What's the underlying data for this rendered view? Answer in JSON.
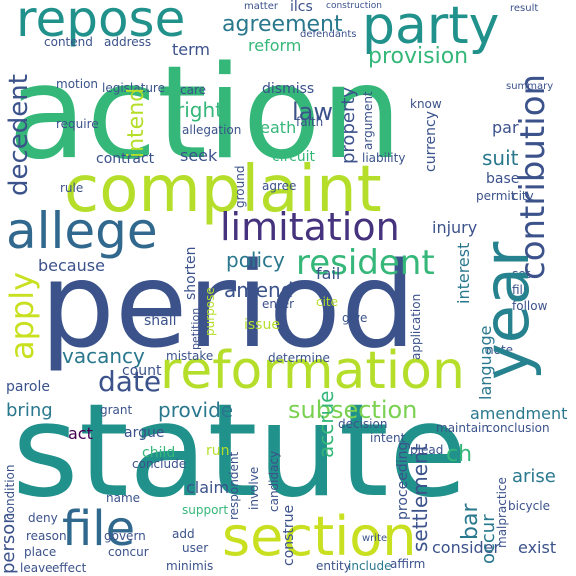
{
  "palette": {
    "navy": "#3b528b",
    "indigo": "#46337e",
    "teal": "#21918c",
    "blue": "#31688e",
    "green": "#35b779",
    "lime": "#b5de2b",
    "yellow": "#e0e619",
    "light": "#7ad151",
    "dark": "#440154"
  },
  "words": [
    {
      "text": "action",
      "color": "#35b779"
    },
    {
      "text": "statute",
      "color": "#21918c"
    },
    {
      "text": "period",
      "color": "#3b528b"
    },
    {
      "text": "complaint",
      "color": "#b5de2b"
    },
    {
      "text": "reformation",
      "color": "#b5de2b"
    },
    {
      "text": "section",
      "color": "#c8e020"
    },
    {
      "text": "repose",
      "color": "#21918c"
    },
    {
      "text": "party",
      "color": "#21918c"
    },
    {
      "text": "allege",
      "color": "#31688e"
    },
    {
      "text": "limitation",
      "color": "#46337e"
    },
    {
      "text": "year",
      "color": "#26828e"
    },
    {
      "text": "file",
      "color": "#31688e"
    },
    {
      "text": "apply",
      "color": "#c8e020"
    },
    {
      "text": "resident",
      "color": "#35b779"
    },
    {
      "text": "contribution",
      "color": "#3b528b"
    },
    {
      "text": "decedent",
      "color": "#3b528b"
    },
    {
      "text": "agreement",
      "color": "#2a788e"
    },
    {
      "text": "provision",
      "color": "#35b779"
    },
    {
      "text": "date",
      "color": "#3b528b"
    },
    {
      "text": "subsection",
      "color": "#7ad151"
    },
    {
      "text": "policy",
      "color": "#2a788e"
    },
    {
      "text": "amend",
      "color": "#3b528b"
    },
    {
      "text": "vacancy",
      "color": "#2a788e"
    },
    {
      "text": "provide",
      "color": "#2a788e"
    },
    {
      "text": "law",
      "color": "#3b528b"
    },
    {
      "text": "right",
      "color": "#35b779"
    },
    {
      "text": "death",
      "color": "#35b779"
    },
    {
      "text": "reform",
      "color": "#35b779"
    },
    {
      "text": "term",
      "color": "#3b528b"
    },
    {
      "text": "intend",
      "color": "#b5de2b"
    },
    {
      "text": "property",
      "color": "#3b528b"
    },
    {
      "text": "suit",
      "color": "#2a788e"
    },
    {
      "text": "accrue",
      "color": "#35b779"
    },
    {
      "text": "injury",
      "color": "#3b528b"
    },
    {
      "text": "amendment",
      "color": "#2a788e"
    },
    {
      "text": "settlement",
      "color": "#3b528b"
    },
    {
      "text": "claim",
      "color": "#3b528b"
    },
    {
      "text": "bring",
      "color": "#2a788e"
    },
    {
      "text": "act",
      "color": "#440154"
    },
    {
      "text": "argue",
      "color": "#3b528b"
    },
    {
      "text": "contract",
      "color": "#3b528b"
    },
    {
      "text": "seek",
      "color": "#3b528b"
    },
    {
      "text": "circuit",
      "color": "#35b779"
    },
    {
      "text": "because",
      "color": "#3b528b"
    },
    {
      "text": "shall",
      "color": "#3b528b"
    },
    {
      "text": "issue",
      "color": "#b5de2b"
    },
    {
      "text": "count",
      "color": "#3b528b"
    },
    {
      "text": "parole",
      "color": "#3b528b"
    },
    {
      "text": "interest",
      "color": "#2a788e"
    },
    {
      "text": "language",
      "color": "#2a788e"
    },
    {
      "text": "arise",
      "color": "#2a788e"
    },
    {
      "text": "bar",
      "color": "#2a788e"
    },
    {
      "text": "occur",
      "color": "#2a788e"
    },
    {
      "text": "person",
      "color": "#3b528b"
    },
    {
      "text": "ch",
      "color": "#35b779"
    },
    {
      "text": "exist",
      "color": "#3b528b"
    },
    {
      "text": "consider",
      "color": "#3b528b"
    },
    {
      "text": "entity",
      "color": "#3b528b"
    },
    {
      "text": "include",
      "color": "#2a788e"
    },
    {
      "text": "construe",
      "color": "#3b528b"
    },
    {
      "text": "support",
      "color": "#35b779"
    },
    {
      "text": "fail",
      "color": "#3b528b"
    },
    {
      "text": "enter",
      "color": "#3b528b"
    },
    {
      "text": "cite",
      "color": "#b5de2b"
    },
    {
      "text": "give",
      "color": "#3b528b"
    },
    {
      "text": "base",
      "color": "#3b528b"
    },
    {
      "text": "par",
      "color": "#3b528b"
    },
    {
      "text": "note",
      "color": "#3b528b"
    },
    {
      "text": "dismiss",
      "color": "#3b528b"
    },
    {
      "text": "faith",
      "color": "#3b528b"
    },
    {
      "text": "liability",
      "color": "#3b528b"
    },
    {
      "text": "motion",
      "color": "#3b528b"
    },
    {
      "text": "legislature",
      "color": "#3b528b"
    },
    {
      "text": "contend",
      "color": "#3b528b"
    },
    {
      "text": "address",
      "color": "#3b528b"
    },
    {
      "text": "allegation",
      "color": "#3b528b"
    },
    {
      "text": "file2",
      "color": "#3b528b"
    },
    {
      "text": "currency",
      "color": "#3b528b"
    },
    {
      "text": "know",
      "color": "#3b528b"
    },
    {
      "text": "argument",
      "color": "#3b528b"
    },
    {
      "text": "application",
      "color": "#3b528b"
    },
    {
      "text": "proceeding",
      "color": "#3b528b"
    },
    {
      "text": "determine",
      "color": "#3b528b"
    },
    {
      "text": "mistake",
      "color": "#3b528b"
    },
    {
      "text": "grant",
      "color": "#3b528b"
    },
    {
      "text": "child",
      "color": "#35b779"
    },
    {
      "text": "decision",
      "color": "#3b528b"
    },
    {
      "text": "intent",
      "color": "#3b528b"
    },
    {
      "text": "deny",
      "color": "#3b528b"
    },
    {
      "text": "name",
      "color": "#3b528b"
    },
    {
      "text": "concur",
      "color": "#3b528b"
    },
    {
      "text": "effect",
      "color": "#3b528b"
    },
    {
      "text": "leave",
      "color": "#3b528b"
    },
    {
      "text": "place",
      "color": "#3b528b"
    },
    {
      "text": "reason",
      "color": "#3b528b"
    },
    {
      "text": "condition",
      "color": "#3b528b"
    },
    {
      "text": "respondent",
      "color": "#3b528b"
    },
    {
      "text": "involve",
      "color": "#3b528b"
    },
    {
      "text": "candidacy",
      "color": "#3b528b"
    },
    {
      "text": "malpractice",
      "color": "#3b528b"
    },
    {
      "text": "bicycle",
      "color": "#3b528b"
    },
    {
      "text": "affirm",
      "color": "#3b528b"
    },
    {
      "text": "set",
      "color": "#3b528b"
    },
    {
      "text": "fill",
      "color": "#3b528b"
    },
    {
      "text": "follow",
      "color": "#3b528b"
    },
    {
      "text": "permit",
      "color": "#3b528b"
    },
    {
      "text": "city",
      "color": "#3b528b"
    },
    {
      "text": "result",
      "color": "#3b528b"
    },
    {
      "text": "summary",
      "color": "#3b528b"
    },
    {
      "text": "matter",
      "color": "#3b528b"
    },
    {
      "text": "ilcs",
      "color": "#3b528b"
    },
    {
      "text": "construction",
      "color": "#3b528b"
    },
    {
      "text": "defendants",
      "color": "#3b528b"
    },
    {
      "text": "care",
      "color": "#3b528b"
    },
    {
      "text": "rule",
      "color": "#3b528b"
    },
    {
      "text": "require",
      "color": "#3b528b"
    },
    {
      "text": "shorten",
      "color": "#3b528b"
    },
    {
      "text": "purpose",
      "color": "#b5de2b"
    },
    {
      "text": "agree",
      "color": "#3b528b"
    },
    {
      "text": "ground",
      "color": "#3b528b"
    },
    {
      "text": "conclude",
      "color": "#3b528b"
    },
    {
      "text": "petition",
      "color": "#3b528b"
    },
    {
      "text": "run",
      "color": "#b5de2b"
    },
    {
      "text": "add",
      "color": "#3b528b"
    },
    {
      "text": "user",
      "color": "#3b528b"
    },
    {
      "text": "govern",
      "color": "#3b528b"
    },
    {
      "text": "plead",
      "color": "#3b528b"
    },
    {
      "text": "write",
      "color": "#3b528b"
    },
    {
      "text": "minimis",
      "color": "#3b528b"
    },
    {
      "text": "maintain",
      "color": "#3b528b"
    },
    {
      "text": "conclusion",
      "color": "#3b528b"
    },
    {
      "text": "consider2",
      "color": "#3b528b"
    }
  ]
}
